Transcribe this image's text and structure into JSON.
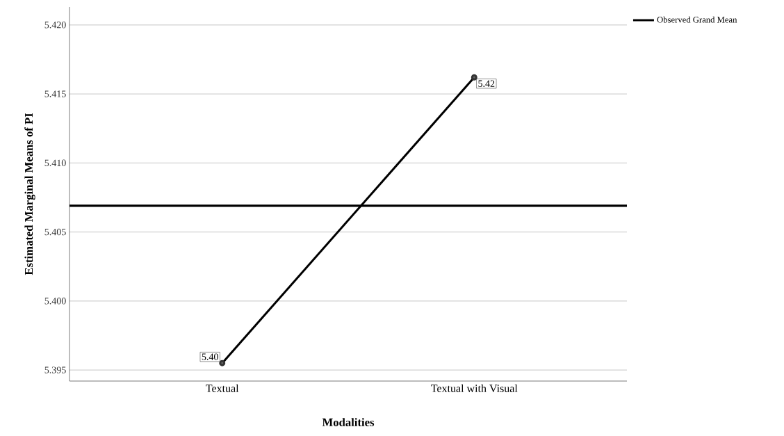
{
  "chart_data": {
    "type": "line",
    "xlabel": "Modalities",
    "ylabel": "Estimated Marginal Means of PI",
    "categories": [
      "Textual",
      "Textual with Visual"
    ],
    "series": [
      {
        "color": "#000000",
        "values": [
          5.3955,
          5.4162
        ],
        "value_labels": [
          "5.40",
          "5.42"
        ]
      }
    ],
    "ylim": [
      5.3942,
      5.4213
    ],
    "yticks": [
      5.395,
      {
        "value": 5.4,
        "label": "5.400"
      },
      5.405,
      {
        "value": 5.41,
        "label": "5.410"
      },
      5.415,
      {
        "value": 5.42,
        "label": "5.420"
      }
    ],
    "ref_lines": [
      {
        "axis": "y",
        "value": 5.4069,
        "label": "Observed Grand Mean",
        "color": "#000000"
      }
    ],
    "grid": "y",
    "legend": "top right",
    "marker": "circle",
    "line_style": "solid"
  }
}
